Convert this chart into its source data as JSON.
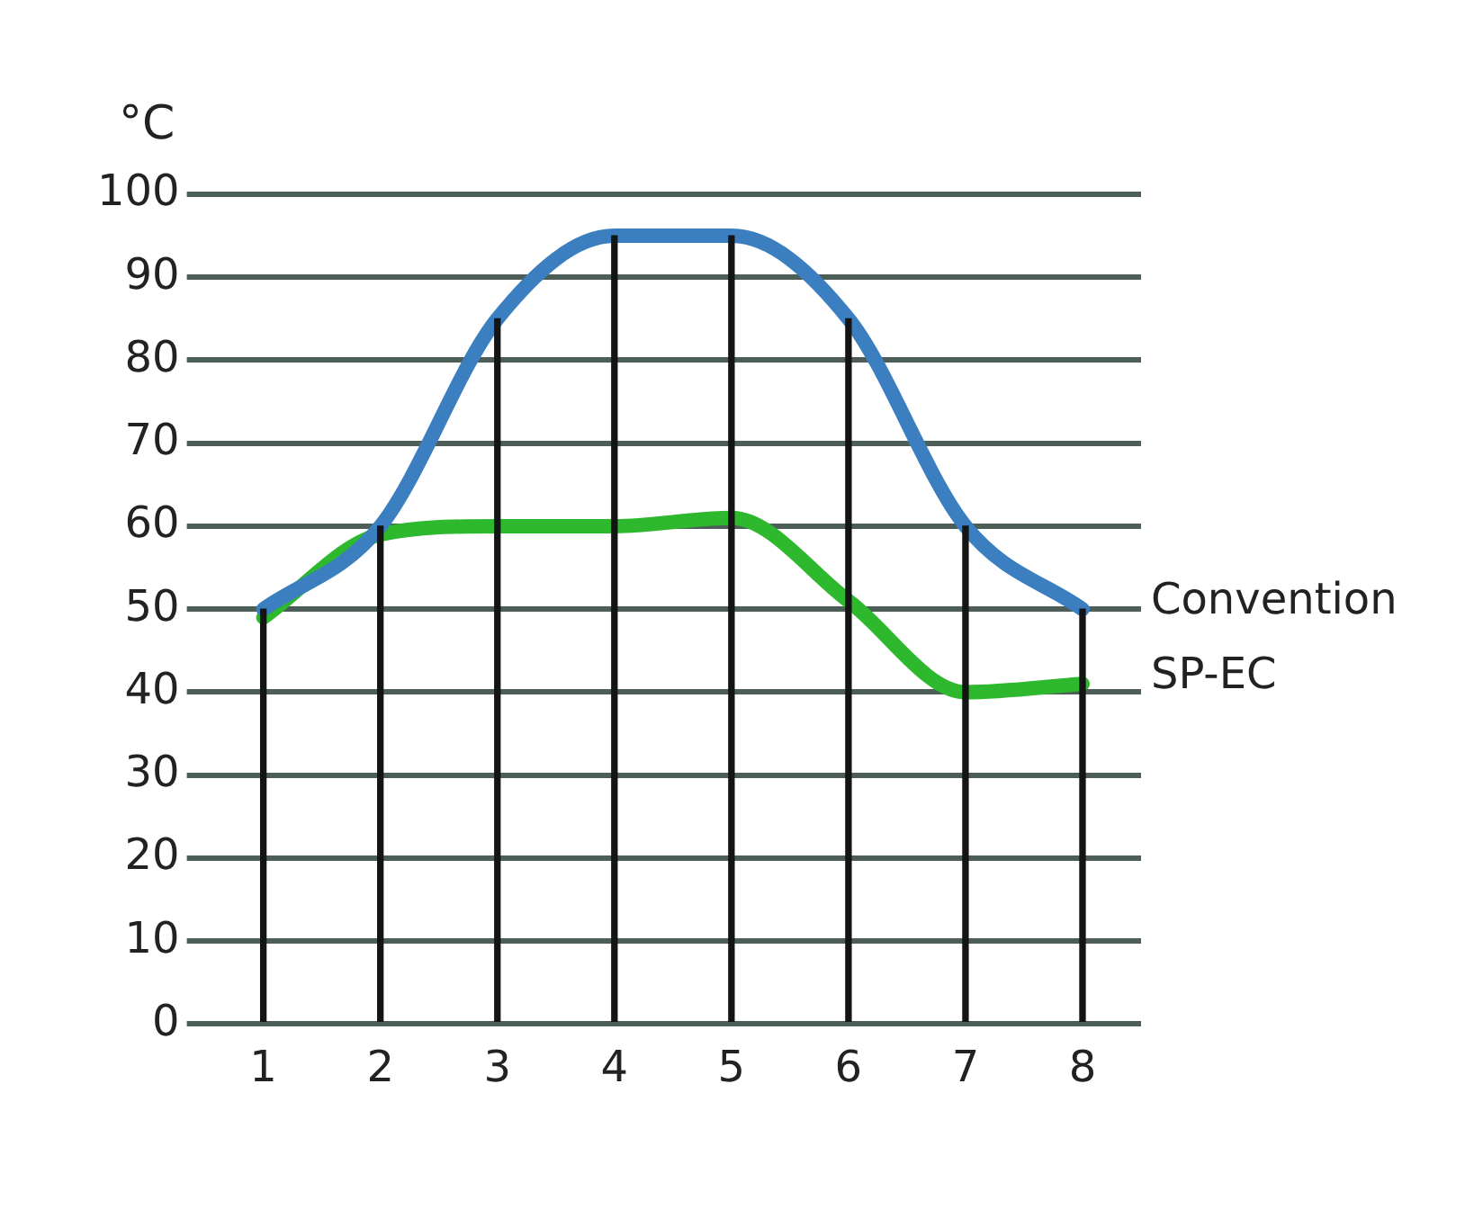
{
  "chart_data": {
    "type": "line",
    "ylabel": "°C",
    "categories": [
      "1",
      "2",
      "3",
      "4",
      "5",
      "6",
      "7",
      "8"
    ],
    "series": [
      {
        "type": "bar",
        "color": "#141414",
        "values": [
          50,
          60,
          85,
          95,
          95,
          85,
          60,
          50
        ]
      },
      {
        "name": "Convention",
        "color": "#3b7fc0",
        "values": [
          50,
          60,
          85,
          95,
          95,
          85,
          60,
          50
        ]
      },
      {
        "name": "SP-EC",
        "color": "#2eb82e",
        "values": [
          49,
          59,
          60,
          60,
          61,
          51,
          40,
          41
        ]
      }
    ],
    "ylim": [
      0,
      100
    ],
    "yticks": [
      0,
      10,
      20,
      30,
      40,
      50,
      60,
      70,
      80,
      90,
      100
    ],
    "grid": "y",
    "legend": false,
    "marker": "none",
    "line_style": "solid"
  }
}
